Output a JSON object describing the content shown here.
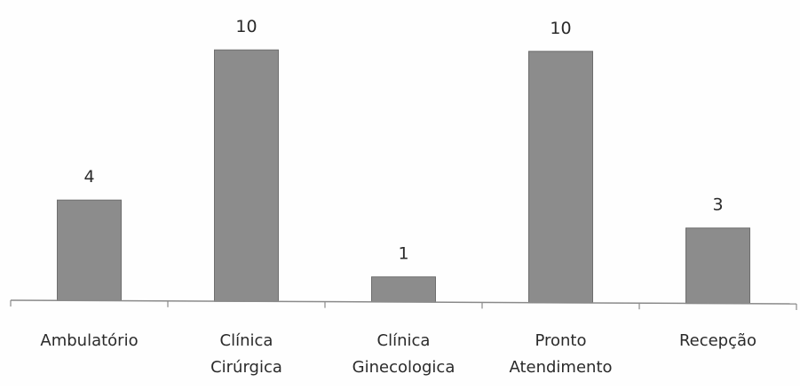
{
  "chart_data": {
    "type": "bar",
    "categories": [
      [
        "Ambulatório"
      ],
      [
        "Clínica",
        "Cirúrgica"
      ],
      [
        "Clínica",
        "Ginecologica"
      ],
      [
        "Pronto",
        "Atendimento"
      ],
      [
        "Recepção"
      ]
    ],
    "values": [
      4,
      10,
      1,
      10,
      3
    ],
    "data_labels": [
      "4",
      "10",
      "1",
      "10",
      "3"
    ],
    "title": "",
    "xlabel": "",
    "ylabel": "",
    "ylim": [
      0,
      10
    ],
    "grid": false,
    "legend": "none",
    "colors": {
      "bar_fill": "#8c8c8c",
      "bar_stroke": "#6e6e6e",
      "axis": "#8a8a8a",
      "text": "#2a2a2a"
    }
  }
}
